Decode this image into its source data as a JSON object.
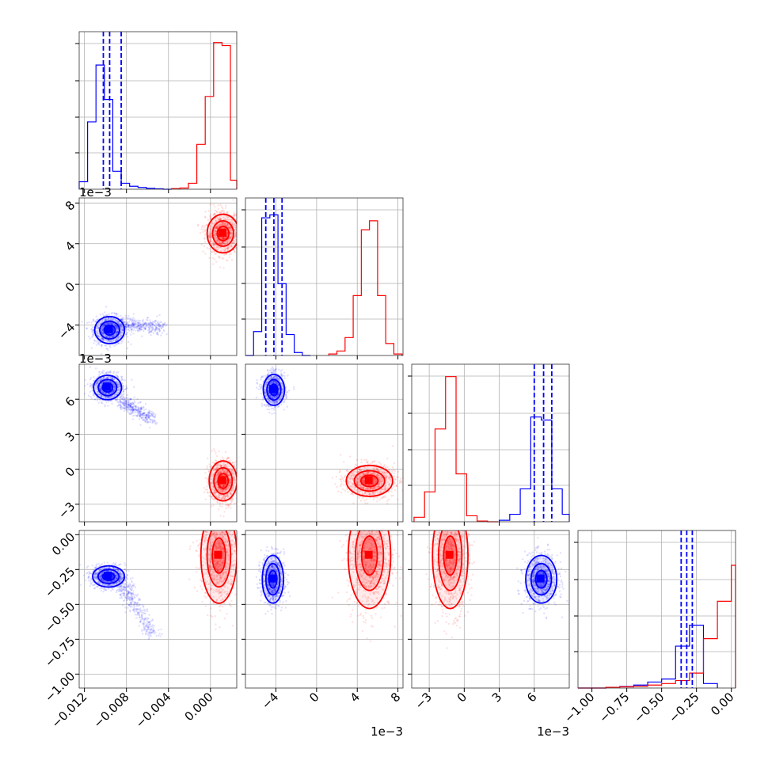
{
  "chart_data": {
    "type": "corner",
    "variables": 4,
    "grid": true,
    "series_colors": {
      "blue": "#0000ff",
      "red": "#ff0000"
    },
    "x_offset_labels": [
      "",
      "1e−3",
      "1e−3",
      ""
    ],
    "y_offset_labels": [
      "",
      "1e−3",
      "1e−3",
      ""
    ],
    "tick_labels": [
      {
        "values": [
          -0.012,
          -0.008,
          -0.004,
          0.0
        ],
        "labels": [
          "−0.012",
          "−0.008",
          "−0.004",
          "0.000"
        ]
      },
      {
        "values": [
          -4,
          0,
          4,
          8
        ],
        "labels": [
          "−4",
          "0",
          "4",
          "8"
        ]
      },
      {
        "values": [
          -3,
          0,
          3,
          6
        ],
        "labels": [
          "−3",
          "0",
          "3",
          "6"
        ]
      },
      {
        "values": [
          -1.0,
          -0.75,
          -0.5,
          -0.25,
          0.0
        ],
        "labels": [
          "−1.00",
          "−0.75",
          "−0.50",
          "−0.25",
          "0.00"
        ]
      }
    ],
    "ranges": [
      [
        -0.0125,
        0.0025
      ],
      [
        -7.0,
        8.5
      ],
      [
        -4.5,
        9.0
      ],
      [
        -1.1,
        0.03
      ]
    ],
    "histograms": [
      {
        "blue": {
          "edges": [
            -0.0125,
            -0.0117,
            -0.0109,
            -0.0101,
            -0.0093,
            -0.0085,
            -0.0077,
            -0.0069,
            -0.0061,
            -0.0053,
            -0.0045,
            -0.0037
          ],
          "counts": [
            0.05,
            0.45,
            0.83,
            0.6,
            0.12,
            0.04,
            0.02,
            0.012,
            0.006,
            0.003,
            0.0
          ]
        },
        "red": {
          "edges": [
            -0.0037,
            -0.0029,
            -0.0021,
            -0.0013,
            -0.0005,
            0.0003,
            0.0011,
            0.0019,
            0.0025
          ],
          "counts": [
            0.004,
            0.008,
            0.04,
            0.3,
            0.62,
            0.98,
            0.96,
            0.06
          ]
        },
        "quantiles": [
          -0.0102,
          -0.0096,
          -0.0085
        ]
      },
      {
        "blue": {
          "edges": [
            -7.0,
            -6.2,
            -5.4,
            -4.6,
            -3.8,
            -3.0,
            -2.2,
            -1.4,
            -0.6
          ],
          "counts": [
            0.0,
            0.16,
            0.92,
            0.94,
            0.48,
            0.14,
            0.02,
            0.0
          ]
        },
        "red": {
          "edges": [
            1.2,
            2.0,
            2.8,
            3.6,
            4.4,
            5.2,
            6.0,
            6.8,
            7.6,
            8.4
          ],
          "counts": [
            0.01,
            0.03,
            0.12,
            0.4,
            0.84,
            0.9,
            0.4,
            0.08,
            0.01
          ]
        },
        "quantiles": [
          -5.0,
          -4.2,
          -3.4
        ]
      },
      {
        "red": {
          "edges": [
            -4.3,
            -3.4,
            -2.5,
            -1.6,
            -0.7,
            0.2,
            1.1,
            2.0,
            2.9
          ],
          "counts": [
            0.03,
            0.2,
            0.62,
            0.97,
            0.32,
            0.04,
            0.005,
            0.0
          ]
        },
        "blue": {
          "edges": [
            3.0,
            3.9,
            4.8,
            5.7,
            6.6,
            7.5,
            8.4,
            9.0
          ],
          "counts": [
            0.01,
            0.05,
            0.22,
            0.7,
            0.68,
            0.22,
            0.05
          ]
        },
        "quantiles": [
          6.0,
          6.8,
          7.5
        ]
      },
      {
        "blue": {
          "edges": [
            -1.1,
            -1.0,
            -0.9,
            -0.8,
            -0.7,
            -0.6,
            -0.5,
            -0.4,
            -0.3,
            -0.2,
            -0.1
          ],
          "counts": [
            0.0,
            0.0,
            0.005,
            0.01,
            0.02,
            0.04,
            0.06,
            0.28,
            0.42,
            0.03
          ]
        },
        "red": {
          "edges": [
            -1.1,
            -1.0,
            -0.9,
            -0.8,
            -0.7,
            -0.6,
            -0.5,
            -0.4,
            -0.3,
            -0.2,
            -0.1,
            0.0,
            0.03
          ],
          "counts": [
            0.0,
            0.0,
            0.005,
            0.008,
            0.012,
            0.02,
            0.03,
            0.05,
            0.1,
            0.33,
            0.58,
            0.82
          ]
        },
        "quantiles": [
          -0.36,
          -0.32,
          -0.28
        ]
      }
    ],
    "scatter_clusters": [
      {
        "row": 1,
        "col": 0,
        "blue": {
          "mean": [
            -0.0096,
            -4.5
          ],
          "sd": [
            0.00075,
            0.7
          ]
        },
        "blue_tail": {
          "from": [
            -0.0085,
            -4.0
          ],
          "to": [
            -0.0045,
            -4.2
          ]
        },
        "red": {
          "mean": [
            0.0012,
            5.0
          ],
          "sd": [
            0.0008,
            1.0
          ]
        }
      },
      {
        "row": 2,
        "col": 0,
        "blue": {
          "mean": [
            -0.0098,
            7.0
          ],
          "sd": [
            0.0007,
            0.55
          ]
        },
        "blue_tail": {
          "from": [
            -0.0085,
            5.8
          ],
          "to": [
            -0.0055,
            4.2
          ]
        },
        "red": {
          "mean": [
            0.0012,
            -1.0
          ],
          "sd": [
            0.0007,
            0.9
          ]
        }
      },
      {
        "row": 2,
        "col": 1,
        "blue": {
          "mean": [
            -4.2,
            6.8
          ],
          "sd": [
            0.55,
            0.7
          ]
        },
        "red": {
          "mean": [
            5.2,
            -1.0
          ],
          "sd": [
            1.2,
            0.7
          ]
        }
      },
      {
        "row": 3,
        "col": 0,
        "blue": {
          "mean": [
            -0.0097,
            -0.3
          ],
          "sd": [
            0.0008,
            0.04
          ]
        },
        "blue_tail": {
          "from": [
            -0.0085,
            -0.35
          ],
          "to": [
            -0.0055,
            -0.72
          ]
        },
        "red": {
          "mean": [
            0.0008,
            -0.15
          ],
          "sd": [
            0.0009,
            0.18
          ]
        }
      },
      {
        "row": 3,
        "col": 1,
        "blue": {
          "mean": [
            -4.3,
            -0.32
          ],
          "sd": [
            0.55,
            0.09
          ]
        },
        "red": {
          "mean": [
            5.2,
            -0.15
          ],
          "sd": [
            1.1,
            0.2
          ]
        }
      },
      {
        "row": 3,
        "col": 2,
        "blue": {
          "mean": [
            6.6,
            -0.32
          ],
          "sd": [
            0.7,
            0.09
          ]
        },
        "red": {
          "mean": [
            -1.2,
            -0.15
          ],
          "sd": [
            0.8,
            0.2
          ]
        }
      }
    ]
  }
}
